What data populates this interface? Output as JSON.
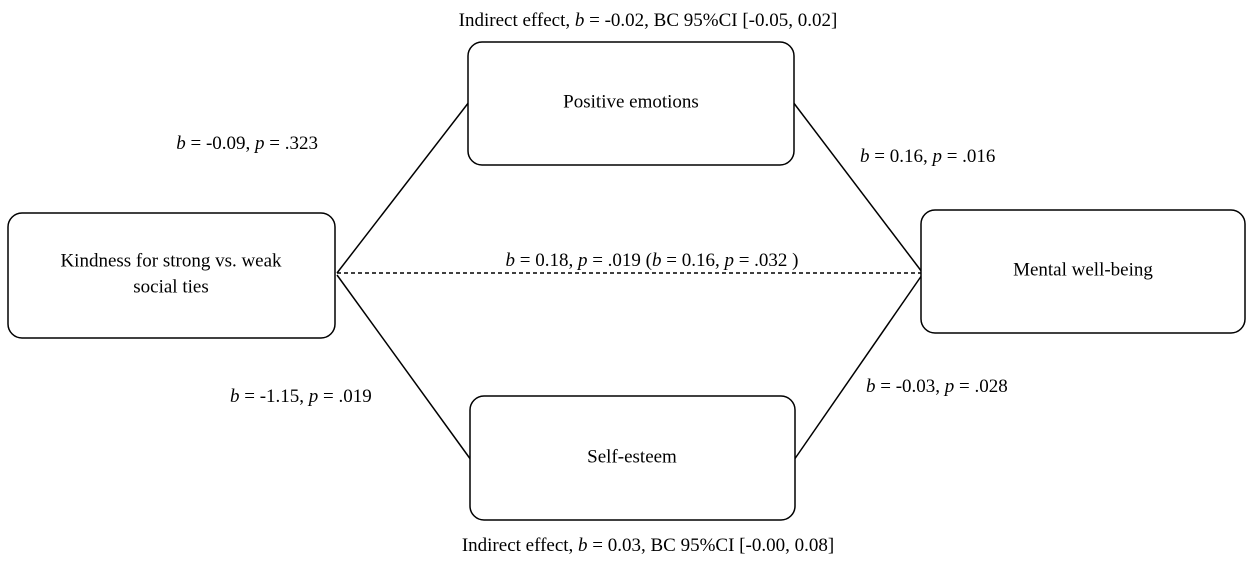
{
  "nodes": [
    {
      "label": [
        "Positive emotions"
      ]
    },
    {
      "label": [
        "Kindness for strong vs. weak",
        "social ties"
      ]
    },
    {
      "label": [
        "Mental well-being"
      ]
    },
    {
      "label": [
        "Self-esteem"
      ]
    }
  ],
  "annotations": [
    [
      {
        "text": "Indirect effect, "
      },
      {
        "text": "b",
        "italic": true
      },
      {
        "text": " = -0.02, BC 95%CI [-0.05, 0.02]"
      }
    ],
    [
      {
        "text": "b",
        "italic": true
      },
      {
        "text": " = -0.09, "
      },
      {
        "text": "p",
        "italic": true
      },
      {
        "text": " = .323"
      }
    ],
    [
      {
        "text": "b",
        "italic": true
      },
      {
        "text": " = 0.16, "
      },
      {
        "text": "p",
        "italic": true
      },
      {
        "text": " = .016"
      }
    ],
    [
      {
        "text": "b",
        "italic": true
      },
      {
        "text": " = 0.18, "
      },
      {
        "text": "p",
        "italic": true
      },
      {
        "text": " = .019 ("
      },
      {
        "text": "b",
        "italic": true
      },
      {
        "text": " = 0.16, "
      },
      {
        "text": "p",
        "italic": true
      },
      {
        "text": " = .032 )"
      }
    ],
    [
      {
        "text": "b",
        "italic": true
      },
      {
        "text": " = -1.15, "
      },
      {
        "text": "p",
        "italic": true
      },
      {
        "text": " = .019"
      }
    ],
    [
      {
        "text": "b",
        "italic": true
      },
      {
        "text": " = -0.03, "
      },
      {
        "text": "p",
        "italic": true
      },
      {
        "text": " = .028"
      }
    ],
    [
      {
        "text": "Indirect effect, "
      },
      {
        "text": "b",
        "italic": true
      },
      {
        "text": " = 0.03, BC 95%CI [-0.00, 0.08]"
      }
    ]
  ]
}
